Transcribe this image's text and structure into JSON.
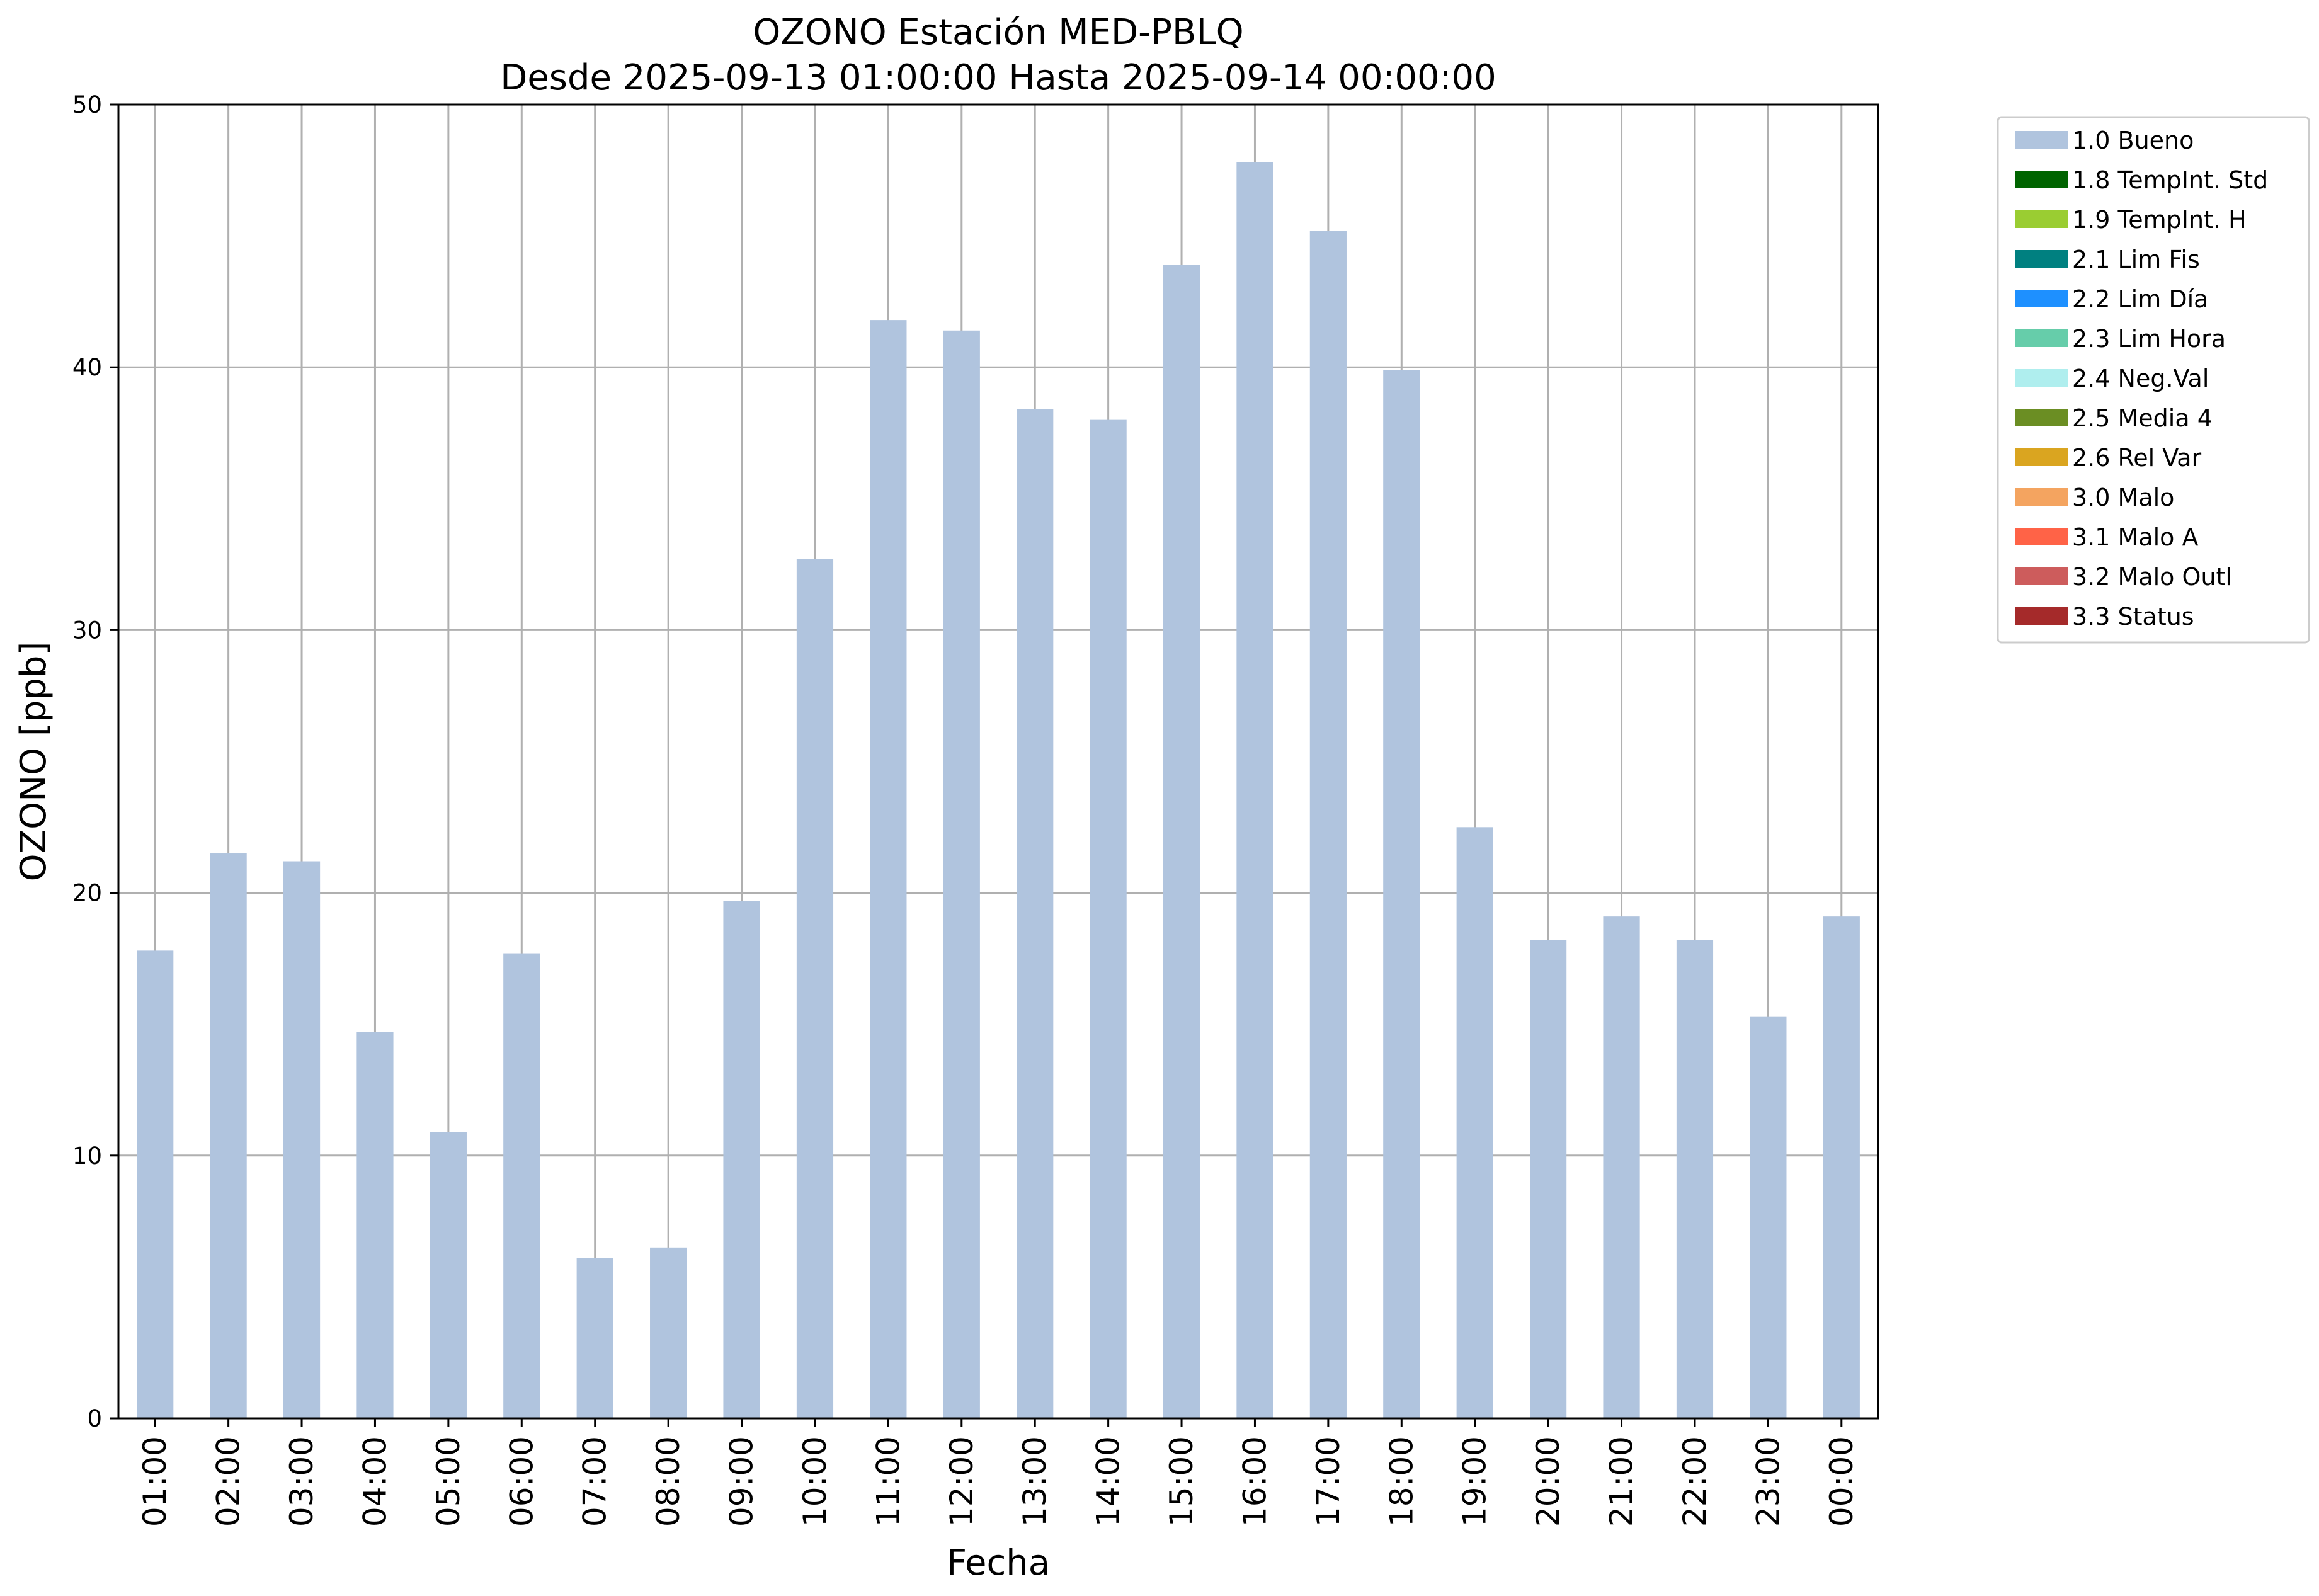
{
  "chart_data": {
    "type": "bar",
    "title": "OZONO Estación MED-PBLQ",
    "subtitle": "Desde 2025-09-13 01:00:00 Hasta 2025-09-14 00:00:00",
    "xlabel": "Fecha",
    "ylabel": "OZONO [ppb]",
    "ylim": [
      0,
      50
    ],
    "yticks": [
      "0",
      "10",
      "20",
      "30",
      "40",
      "50"
    ],
    "grid": true,
    "legend_position": "outside-right",
    "categories": [
      "01:00",
      "02:00",
      "03:00",
      "04:00",
      "05:00",
      "06:00",
      "07:00",
      "08:00",
      "09:00",
      "10:00",
      "11:00",
      "12:00",
      "13:00",
      "14:00",
      "15:00",
      "16:00",
      "17:00",
      "18:00",
      "19:00",
      "20:00",
      "21:00",
      "22:00",
      "23:00",
      "00:00"
    ],
    "series": [
      {
        "name": "1.0 Bueno",
        "color": "#b0c4de",
        "values": [
          17.8,
          21.5,
          21.2,
          14.7,
          10.9,
          17.7,
          6.1,
          6.5,
          19.7,
          32.7,
          41.8,
          41.4,
          38.4,
          38.0,
          43.9,
          47.8,
          45.2,
          39.9,
          22.5,
          18.2,
          19.1,
          18.2,
          15.3,
          19.1
        ]
      }
    ],
    "legend": [
      {
        "label": "1.0 Bueno",
        "color": "#b0c4de"
      },
      {
        "label": "1.8 TempInt. Std",
        "color": "#006400"
      },
      {
        "label": "1.9 TempInt. H",
        "color": "#9acd32"
      },
      {
        "label": "2.1 Lim Fis",
        "color": "#008080"
      },
      {
        "label": "2.2 Lim Día",
        "color": "#1e90ff"
      },
      {
        "label": "2.3 Lim Hora",
        "color": "#66cdaa"
      },
      {
        "label": "2.4 Neg.Val",
        "color": "#afeeee"
      },
      {
        "label": "2.5 Media 4",
        "color": "#6b8e23"
      },
      {
        "label": "2.6 Rel Var",
        "color": "#daa520"
      },
      {
        "label": "3.0 Malo",
        "color": "#f4a460"
      },
      {
        "label": "3.1 Malo A",
        "color": "#ff6347"
      },
      {
        "label": "3.2 Malo Outl",
        "color": "#cd5c5c"
      },
      {
        "label": "3.3 Status",
        "color": "#a52a2a"
      }
    ]
  }
}
